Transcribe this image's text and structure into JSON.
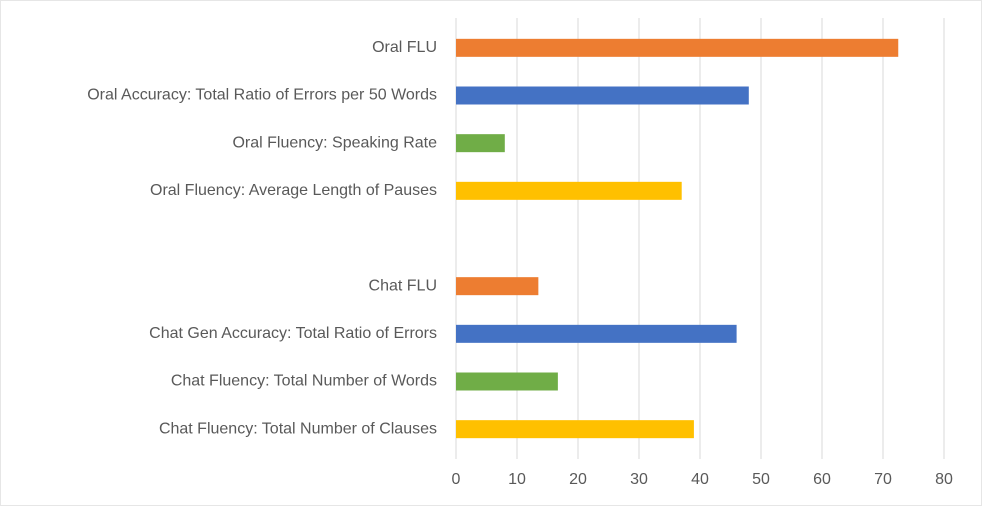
{
  "chart_data": {
    "type": "barh",
    "categories": [
      "Oral FLU",
      "Oral Accuracy: Total Ratio of Errors per 50 Words",
      "Oral Fluency: Speaking Rate",
      "Oral Fluency: Average Length of Pauses",
      null,
      "Chat FLU",
      "Chat Gen Accuracy: Total Ratio of Errors",
      "Chat Fluency: Total Number of Words",
      "Chat Fluency: Total Number of Clauses"
    ],
    "values": [
      72.5,
      48,
      8,
      37,
      null,
      13.5,
      46,
      16.7,
      39
    ],
    "colors": [
      "#ED7D31",
      "#4472C4",
      "#70AD47",
      "#FFC000",
      null,
      "#ED7D31",
      "#4472C4",
      "#70AD47",
      "#FFC000"
    ],
    "xlim": [
      0,
      80
    ],
    "xticks": [
      0,
      10,
      20,
      30,
      40,
      50,
      60,
      70,
      80
    ],
    "grid": true
  }
}
